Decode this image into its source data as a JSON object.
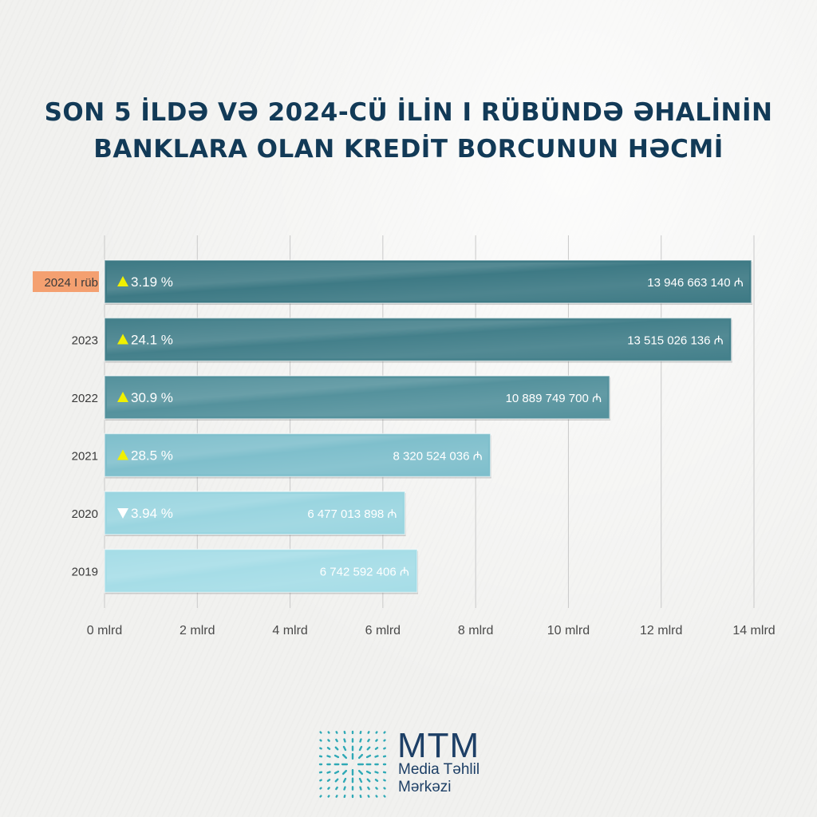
{
  "title_line1": "SON 5 İLDƏ VƏ 2024-CÜ İLİN I RÜBÜNDƏ ƏHALİNİN",
  "title_line2": "BANKLARA OLAN KREDİT BORCUNUN HƏCMİ",
  "chart_data": {
    "type": "bar",
    "orientation": "horizontal",
    "categories": [
      "2024 I rüb",
      "2023",
      "2022",
      "2021",
      "2020",
      "2019"
    ],
    "values": [
      13946663140,
      13515026136,
      10889749700,
      8320524036,
      6477013898,
      6742592406
    ],
    "value_labels": [
      "13 946 663 140 ₼",
      "13 515 026 136 ₼",
      "10 889 749 700 ₼",
      "8 320 524 036 ₼",
      "6 477 013 898 ₼",
      "6 742 592 406 ₼"
    ],
    "change_direction": [
      "up",
      "up",
      "up",
      "up",
      "down",
      ""
    ],
    "change_labels": [
      "3.19 %",
      "24.1 %",
      "30.9 %",
      "28.5 %",
      "3.94 %",
      ""
    ],
    "xlim": [
      0,
      14000000000
    ],
    "xticks": [
      "0 mlrd",
      "2 mlrd",
      "4 mlrd",
      "6 mlrd",
      "8 mlrd",
      "10 mlrd",
      "12 mlrd",
      "14 mlrd"
    ],
    "grid": true,
    "highlight_category": "2024 I rüb",
    "colors": {
      "bars": [
        "#3e7a85",
        "#44808b",
        "#55929d",
        "#7fbfcc",
        "#9ad5e0",
        "#a6dde7"
      ],
      "highlight_label_bg": "#f4a070",
      "arrow": "#f0f000",
      "grid": "#c9c9c9"
    }
  },
  "logo": {
    "name": "MTM",
    "subtitle_line1": "Media Təhlil",
    "subtitle_line2": "Mərkəzi",
    "color": "#1d3f66",
    "mark_color": "#2fa9b6"
  }
}
